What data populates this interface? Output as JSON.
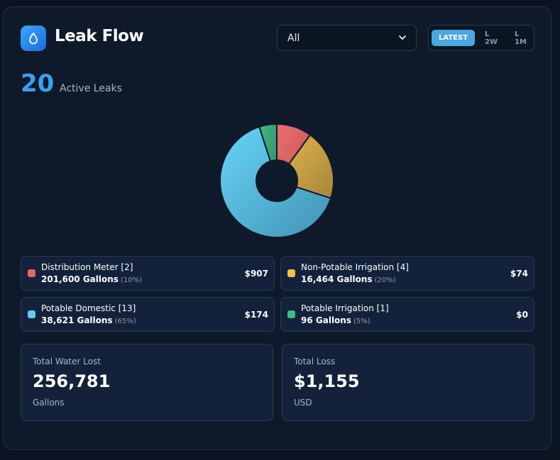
{
  "app": {
    "title": "Leak Flow",
    "logo_icon": "water-drop-icon"
  },
  "filter": {
    "selected": "All",
    "icon": "chevron-down-icon"
  },
  "period_tabs": [
    {
      "label": "LATEST",
      "active": true
    },
    {
      "label": "L 2W",
      "active": false
    },
    {
      "label": "L 1M",
      "active": false
    }
  ],
  "summary": {
    "count": "20",
    "label": "Active Leaks"
  },
  "chart_data": {
    "type": "pie",
    "title": "",
    "categories": [
      "Distribution Meter",
      "Non-Potable Irrigation",
      "Potable Domestic",
      "Potable Irrigation"
    ],
    "values": [
      10,
      20,
      65,
      5
    ],
    "unit": "percent",
    "colors": [
      "#e36a6a",
      "#dcb14b",
      "#62cdf2",
      "#3cab7e"
    ]
  },
  "categories": [
    {
      "name": "Distribution Meter [2]",
      "gallons": "201,600 Gallons",
      "percent": "(10%)",
      "cost": "$907",
      "color": "#e96767"
    },
    {
      "name": "Non-Potable Irrigation [4]",
      "gallons": "16,464 Gallons",
      "percent": "(20%)",
      "cost": "$74",
      "color": "#f2c14e"
    },
    {
      "name": "Potable Domestic [13]",
      "gallons": "38,621 Gallons",
      "percent": "(65%)",
      "cost": "$174",
      "color": "#5dcdf5"
    },
    {
      "name": "Potable Irrigation [1]",
      "gallons": "96 Gallons",
      "percent": "(5%)",
      "cost": "$0",
      "color": "#3dbb87"
    }
  ],
  "totals": {
    "water": {
      "label": "Total Water Lost",
      "value": "256,781",
      "unit": "Gallons"
    },
    "loss": {
      "label": "Total Loss",
      "value": "$1,155",
      "unit": "USD"
    }
  }
}
